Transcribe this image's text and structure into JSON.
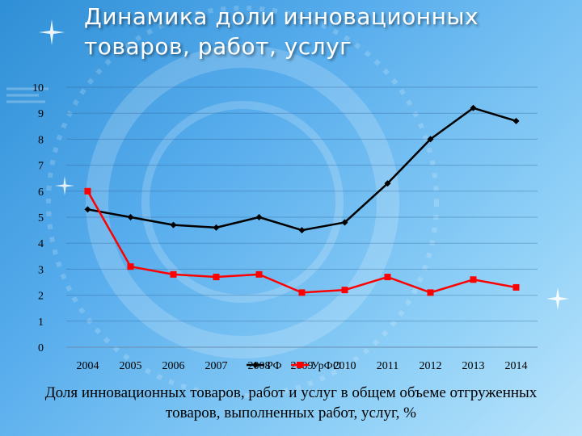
{
  "slide": {
    "title_line1": "Динамика доли инновационных",
    "title_line2": "товаров, работ, услуг",
    "caption": "Доля инновационных товаров, работ и услуг в общем объеме отгруженных товаров, выполненных работ, услуг, %",
    "background_colors": [
      "#2f8fd6",
      "#b9e4fb"
    ]
  },
  "chart_data": {
    "type": "line",
    "categories": [
      "2004",
      "2005",
      "2006",
      "2007",
      "2008",
      "2009",
      "2010",
      "2011",
      "2012",
      "2013",
      "2014"
    ],
    "series": [
      {
        "name": "РФ",
        "color": "#000000",
        "marker": "diamond",
        "values": [
          5.3,
          5.0,
          4.7,
          4.6,
          5.0,
          4.5,
          4.8,
          6.3,
          8.0,
          9.2,
          8.7
        ]
      },
      {
        "name": "УрФО",
        "color": "#ff0000",
        "marker": "square",
        "values": [
          6.0,
          3.1,
          2.8,
          2.7,
          2.8,
          2.1,
          2.2,
          2.7,
          2.1,
          2.6,
          2.3
        ]
      }
    ],
    "y_ticks": [
      "0",
      "1",
      "2",
      "3",
      "4",
      "5",
      "6",
      "7",
      "8",
      "9",
      "10"
    ],
    "ylim": [
      0,
      10
    ],
    "grid": true,
    "legend": "bottom-center"
  }
}
